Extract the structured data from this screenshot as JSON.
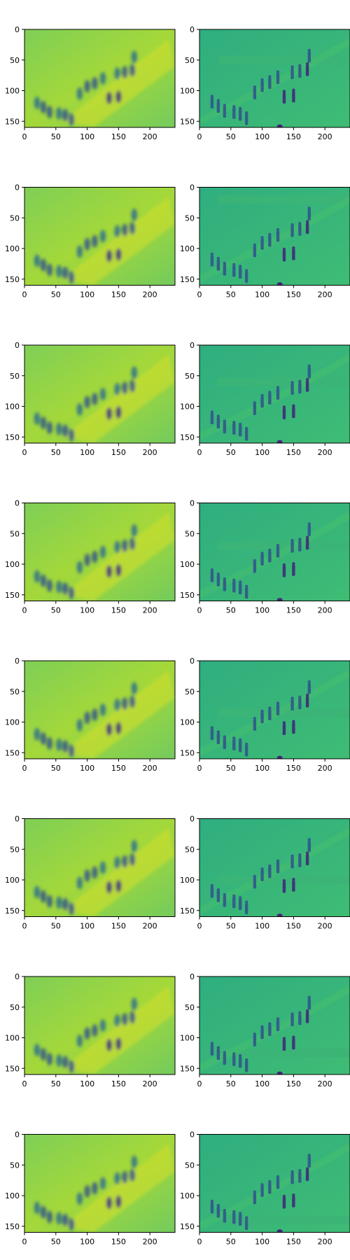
{
  "chart_data": {
    "type": "heatmap",
    "layout": {
      "rows": 8,
      "cols": 2
    },
    "colormap": "viridis",
    "image_size": {
      "width": 240,
      "height": 160
    },
    "xticks": [
      0,
      50,
      100,
      150,
      200
    ],
    "yticks": [
      0,
      50,
      100,
      150
    ],
    "panels": [
      {
        "row": 1,
        "col": 1,
        "content": "blurred reconstruction"
      },
      {
        "row": 1,
        "col": 2,
        "content": "detailed frame, band at y≈50"
      },
      {
        "row": 2,
        "col": 1,
        "content": "blurred reconstruction"
      },
      {
        "row": 2,
        "col": 2,
        "content": "detailed frame, band at y≈20"
      },
      {
        "row": 3,
        "col": 1,
        "content": "blurred reconstruction"
      },
      {
        "row": 3,
        "col": 2,
        "content": "detailed frame, band at y≈60"
      },
      {
        "row": 4,
        "col": 1,
        "content": "blurred reconstruction"
      },
      {
        "row": 4,
        "col": 2,
        "content": "detailed frame, band at y≈70"
      },
      {
        "row": 5,
        "col": 1,
        "content": "blurred reconstruction"
      },
      {
        "row": 5,
        "col": 2,
        "content": "detailed frame, band at y≈85"
      },
      {
        "row": 6,
        "col": 1,
        "content": "blurred reconstruction"
      },
      {
        "row": 6,
        "col": 2,
        "content": "detailed frame, band at y≈100"
      },
      {
        "row": 7,
        "col": 1,
        "content": "blurred reconstruction"
      },
      {
        "row": 7,
        "col": 2,
        "content": "detailed frame, band at y≈125"
      },
      {
        "row": 8,
        "col": 1,
        "content": "blurred reconstruction"
      },
      {
        "row": 8,
        "col": 2,
        "content": "detailed frame, band at y≈140"
      }
    ],
    "band_y": [
      50,
      20,
      60,
      70,
      85,
      100,
      125,
      140
    ]
  }
}
